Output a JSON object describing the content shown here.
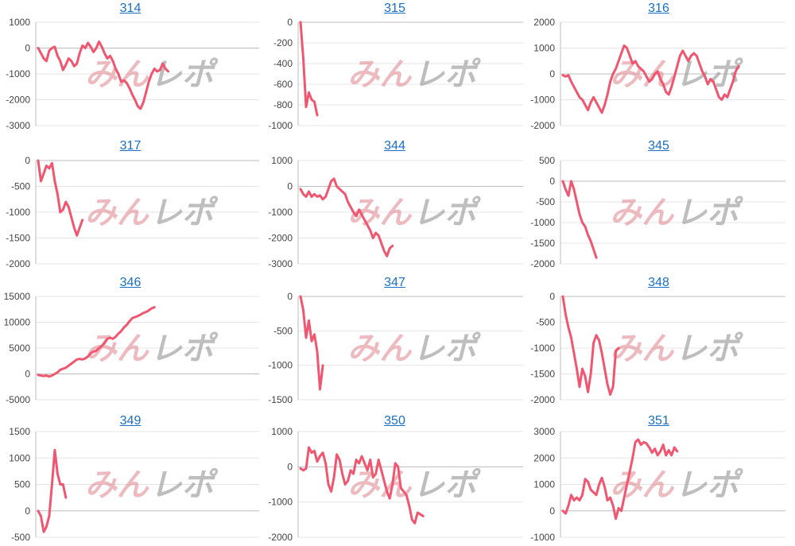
{
  "colors": {
    "line": "#f0566f",
    "grid": "#e4e4e4",
    "axis": "#bdbdbd",
    "title": "#1a6fc4"
  },
  "watermark": {
    "part1": "みん",
    "part2": "レポ"
  },
  "chart_data": [
    {
      "type": "line",
      "title": "314",
      "ylim": [
        -3000,
        1000
      ],
      "yticks": [
        1000,
        0,
        -1000,
        -2000,
        -3000
      ],
      "x_len": 80,
      "values": [
        0,
        -200,
        -400,
        -500,
        -100,
        0,
        50,
        -300,
        -500,
        -850,
        -650,
        -400,
        -500,
        -700,
        -600,
        -200,
        100,
        0,
        200,
        50,
        -150,
        0,
        250,
        50,
        -200,
        -400,
        -300,
        -500,
        -800,
        -1000,
        -1300,
        -1250,
        -1350,
        -1550,
        -1800,
        -2000,
        -2250,
        -2350,
        -2100,
        -1700,
        -1300,
        -1000,
        -800,
        -900,
        -850,
        -600,
        -800,
        -900
      ]
    },
    {
      "type": "line",
      "title": "315",
      "ylim": [
        -1000,
        0
      ],
      "yticks": [
        0,
        -200,
        -400,
        -600,
        -800,
        -1000
      ],
      "x_len": 80,
      "values": [
        0,
        -350,
        -820,
        -680,
        -750,
        -770,
        -900
      ]
    },
    {
      "type": "line",
      "title": "316",
      "ylim": [
        -2000,
        2000
      ],
      "yticks": [
        2000,
        1000,
        0,
        -1000,
        -2000
      ],
      "x_len": 80,
      "values": [
        -50,
        -100,
        -50,
        -300,
        -500,
        -700,
        -900,
        -1000,
        -1200,
        -1400,
        -1100,
        -900,
        -1100,
        -1300,
        -1500,
        -1200,
        -800,
        -300,
        0,
        200,
        500,
        800,
        1100,
        1000,
        700,
        400,
        500,
        300,
        200,
        100,
        -100,
        -300,
        -200,
        0,
        100,
        -200,
        -400,
        -700,
        -800,
        -500,
        -100,
        300,
        700,
        900,
        700,
        500,
        700,
        800,
        700,
        400,
        100,
        -100,
        -400,
        -200,
        -300,
        -600,
        -900,
        -1000,
        -800,
        -900,
        -600,
        -300,
        100,
        300
      ]
    },
    {
      "type": "line",
      "title": "317",
      "ylim": [
        -2000,
        0
      ],
      "yticks": [
        0,
        -500,
        -1000,
        -1500,
        -2000
      ],
      "x_len": 80,
      "values": [
        0,
        -400,
        -250,
        -100,
        -150,
        -50,
        -400,
        -650,
        -1000,
        -950,
        -800,
        -900,
        -1100,
        -1300,
        -1450,
        -1300,
        -1150
      ]
    },
    {
      "type": "line",
      "title": "344",
      "ylim": [
        -3000,
        1000
      ],
      "yticks": [
        1000,
        0,
        -1000,
        -2000,
        -3000
      ],
      "x_len": 80,
      "values": [
        -100,
        -300,
        -400,
        -200,
        -400,
        -300,
        -400,
        -350,
        -500,
        -400,
        -100,
        200,
        300,
        0,
        -100,
        -200,
        -300,
        -600,
        -800,
        -1000,
        -1150,
        -900,
        -1100,
        -1300,
        -1500,
        -1700,
        -2000,
        -1800,
        -1900,
        -2200,
        -2500,
        -2700,
        -2400,
        -2300
      ]
    },
    {
      "type": "line",
      "title": "345",
      "ylim": [
        -2000,
        500
      ],
      "yticks": [
        500,
        0,
        -500,
        -1000,
        -1500,
        -2000
      ],
      "x_len": 80,
      "values": [
        0,
        -200,
        -350,
        0,
        -200,
        -500,
        -800,
        -1000,
        -1100,
        -1300,
        -1450,
        -1650,
        -1850
      ]
    },
    {
      "type": "line",
      "title": "346",
      "ylim": [
        -5000,
        15000
      ],
      "yticks": [
        15000,
        10000,
        5000,
        0,
        -5000
      ],
      "x_len": 80,
      "values": [
        -200,
        -300,
        -400,
        -300,
        -500,
        -300,
        0,
        300,
        800,
        1000,
        1200,
        1600,
        2000,
        2400,
        2800,
        2900,
        2800,
        3000,
        3400,
        4000,
        4300,
        4500,
        5000,
        5400,
        6000,
        6800,
        7000,
        6800,
        7200,
        7800,
        8300,
        9000,
        9500,
        10200,
        10800,
        11000,
        11200,
        11500,
        11800,
        12000,
        12300,
        12700,
        12900
      ]
    },
    {
      "type": "line",
      "title": "347",
      "ylim": [
        -1500,
        0
      ],
      "yticks": [
        0,
        -500,
        -1000,
        -1500
      ],
      "x_len": 80,
      "values": [
        0,
        -200,
        -600,
        -350,
        -650,
        -550,
        -800,
        -1350,
        -1000
      ]
    },
    {
      "type": "line",
      "title": "348",
      "ylim": [
        -2000,
        0
      ],
      "yticks": [
        0,
        -500,
        -1000,
        -1500,
        -2000
      ],
      "x_len": 80,
      "values": [
        0,
        -350,
        -600,
        -800,
        -1100,
        -1400,
        -1750,
        -1400,
        -1550,
        -1850,
        -1500,
        -900,
        -750,
        -850,
        -1100,
        -1400,
        -1700,
        -1900,
        -1750,
        -1050,
        -1000
      ]
    },
    {
      "type": "line",
      "title": "349",
      "ylim": [
        -500,
        1500
      ],
      "yticks": [
        1500,
        1000,
        500,
        0,
        -500
      ],
      "x_len": 80,
      "values": [
        0,
        -100,
        -400,
        -300,
        -100,
        500,
        1150,
        700,
        500,
        500,
        250
      ]
    },
    {
      "type": "line",
      "title": "350",
      "ylim": [
        -2000,
        1000
      ],
      "yticks": [
        1000,
        0,
        -1000,
        -2000
      ],
      "x_len": 80,
      "values": [
        -50,
        -100,
        -50,
        550,
        400,
        450,
        150,
        300,
        400,
        100,
        -500,
        -700,
        -300,
        350,
        200,
        -200,
        -500,
        -400,
        -100,
        -200,
        200,
        100,
        300,
        100,
        -100,
        200,
        -300,
        -200,
        200,
        -100,
        -400,
        -700,
        -900,
        -500,
        100,
        0,
        -600,
        -700,
        -800,
        -1100,
        -1500,
        -1600,
        -1300,
        -1350,
        -1400
      ]
    },
    {
      "type": "line",
      "title": "351",
      "ylim": [
        -1000,
        3000
      ],
      "yticks": [
        3000,
        2000,
        1000,
        0,
        -1000
      ],
      "x_len": 80,
      "values": [
        0,
        -100,
        200,
        600,
        400,
        500,
        400,
        600,
        1200,
        1100,
        800,
        700,
        600,
        1000,
        1250,
        900,
        400,
        500,
        200,
        -300,
        100,
        0,
        500,
        1000,
        1500,
        2000,
        2600,
        2700,
        2500,
        2600,
        2550,
        2400,
        2200,
        2350,
        2100,
        2250,
        2500,
        2100,
        2300,
        2100,
        2400,
        2250
      ]
    }
  ]
}
